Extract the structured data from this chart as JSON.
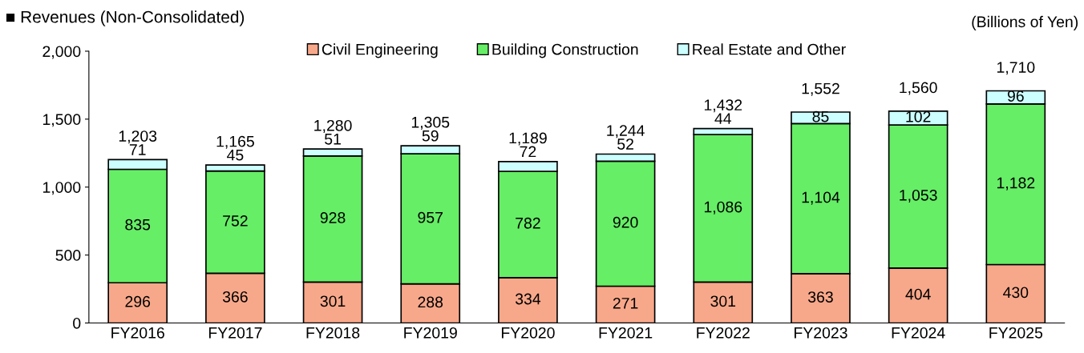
{
  "chart_data": {
    "type": "bar",
    "title": "■ Revenues (Non-Consolidated)",
    "annotations": [
      "(Billions of Yen)"
    ],
    "categories": [
      "FY2016",
      "FY2017",
      "FY2018",
      "FY2019",
      "FY2020",
      "FY2021",
      "FY2022",
      "FY2023",
      "FY2024",
      "FY2025"
    ],
    "stacked": true,
    "legend": "top",
    "grid": false,
    "ylim": [
      0,
      2000
    ],
    "yticks": [
      0,
      500,
      {
        "value": 1000,
        "label": "1,000"
      },
      {
        "value": 1500,
        "label": "1,500"
      },
      {
        "value": 2000,
        "label": "2,000"
      }
    ],
    "series": [
      {
        "name": "Civil Engineering",
        "color": "#f8a88a",
        "values": [
          296,
          366,
          301,
          288,
          334,
          271,
          301,
          363,
          404,
          430
        ],
        "value_labels": [
          "296",
          "366",
          "301",
          "288",
          "334",
          "271",
          "301",
          "363",
          "404",
          "430"
        ]
      },
      {
        "name": "Building Construction",
        "color": "#66ee66",
        "values": [
          835,
          752,
          928,
          957,
          782,
          920,
          1086,
          1104,
          1053,
          1182
        ],
        "value_labels": [
          "835",
          "752",
          "928",
          "957",
          "782",
          "920",
          "1,086",
          "1,104",
          "1,053",
          "1,182"
        ]
      },
      {
        "name": "Real Estate and Other",
        "color": "#ccffff",
        "values": [
          71,
          45,
          51,
          59,
          72,
          52,
          44,
          85,
          102,
          96
        ],
        "value_labels": [
          "71",
          "45",
          "51",
          "59",
          "72",
          "52",
          "44",
          "85",
          "102",
          "96"
        ]
      }
    ],
    "totals": [
      "1,203",
      "1,165",
      "1,280",
      "1,305",
      "1,189",
      "1,244",
      "1,432",
      "1,552",
      "1,560",
      "1,710"
    ]
  }
}
